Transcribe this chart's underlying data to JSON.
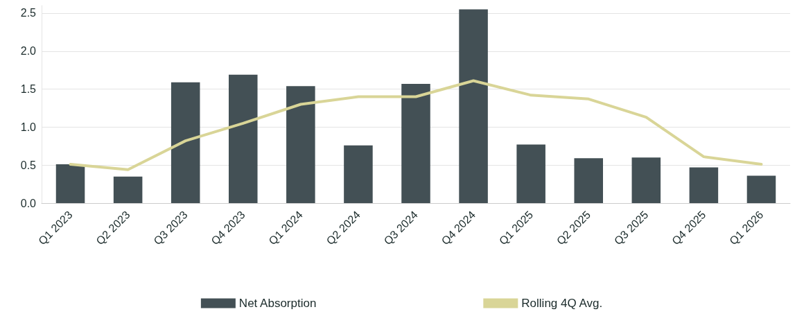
{
  "chart_data": {
    "type": "bar",
    "categories": [
      "Q1 2023",
      "Q2 2023",
      "Q3 2023",
      "Q4 2023",
      "Q1 2024",
      "Q2 2024",
      "Q3 2024",
      "Q4 2024",
      "Q1 2025",
      "Q2 2025",
      "Q3 2025",
      "Q4 2025",
      "Q1 2026"
    ],
    "series": [
      {
        "name": "Net Absorption",
        "color": "#435055",
        "values": [
          0.51,
          0.35,
          1.59,
          1.69,
          1.54,
          0.76,
          1.57,
          2.55,
          0.77,
          0.59,
          0.6,
          0.47,
          0.36
        ]
      },
      {
        "name": "Rolling 4Q Avg.",
        "type": "line",
        "color": "#d9d597",
        "values": [
          0.51,
          0.44,
          0.82,
          1.05,
          1.3,
          1.4,
          1.4,
          1.61,
          1.42,
          1.37,
          1.13,
          0.61,
          0.51
        ]
      }
    ],
    "ylim": [
      0,
      2.6
    ],
    "yticks": [
      {
        "value": 0,
        "label": "0.0"
      },
      {
        "value": 0.5,
        "label": "0.5"
      },
      {
        "value": 1,
        "label": "1.0"
      },
      {
        "value": 1.5,
        "label": "1.5"
      },
      {
        "value": 2,
        "label": "2.0"
      },
      {
        "value": 2.5,
        "label": "2.5"
      }
    ],
    "grid": "y",
    "legend": "bottom",
    "marker": "none",
    "line_style": "solid"
  }
}
